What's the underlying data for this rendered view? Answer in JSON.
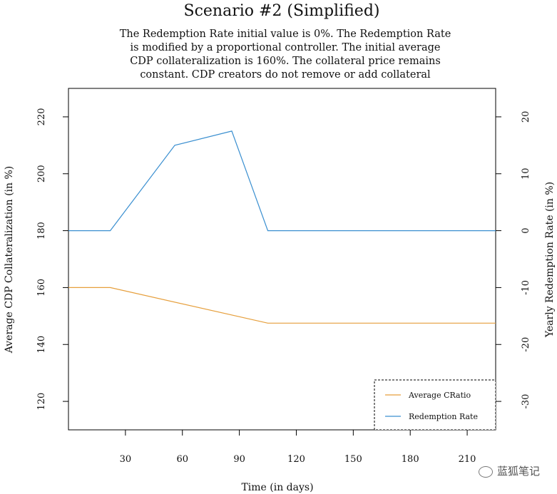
{
  "chart_data": {
    "type": "line",
    "title": "Scenario #2 (Simplified)",
    "subtitle_lines": [
      "The Redemption Rate initial value is 0%. The Redemption Rate",
      "is modified by a proportional controller. The initial average",
      "CDP collateralization is 160%. The collateral price remains",
      "constant. CDP creators do not remove or add collateral"
    ],
    "xlabel": "Time (in days)",
    "ylabel_left": "Average CDP Collateralization (in %)",
    "ylabel_right": "Yearly Redemption Rate (in %)",
    "x_ticks": [
      30,
      60,
      90,
      120,
      150,
      180,
      210
    ],
    "y_left_ticks": [
      120,
      140,
      160,
      180,
      200,
      220
    ],
    "y_right_ticks": [
      -30,
      -20,
      -10,
      0,
      10,
      20
    ],
    "xlim": [
      0,
      225
    ],
    "ylim_left": [
      110,
      230
    ],
    "ylim_right": [
      -35,
      25
    ],
    "grid": false,
    "legend_position": "bottom-right",
    "series": [
      {
        "name": "Average CRatio",
        "axis": "left",
        "color": "#e69f3c",
        "x": [
          0,
          22,
          105,
          225
        ],
        "y": [
          160,
          160,
          147.5,
          147.5
        ]
      },
      {
        "name": "Redemption Rate",
        "axis": "right",
        "color": "#3a8fd0",
        "x": [
          0,
          22,
          56,
          86,
          105,
          225
        ],
        "y": [
          0,
          0,
          15,
          17.5,
          0,
          0
        ]
      }
    ]
  },
  "watermark": "蓝狐笔记"
}
